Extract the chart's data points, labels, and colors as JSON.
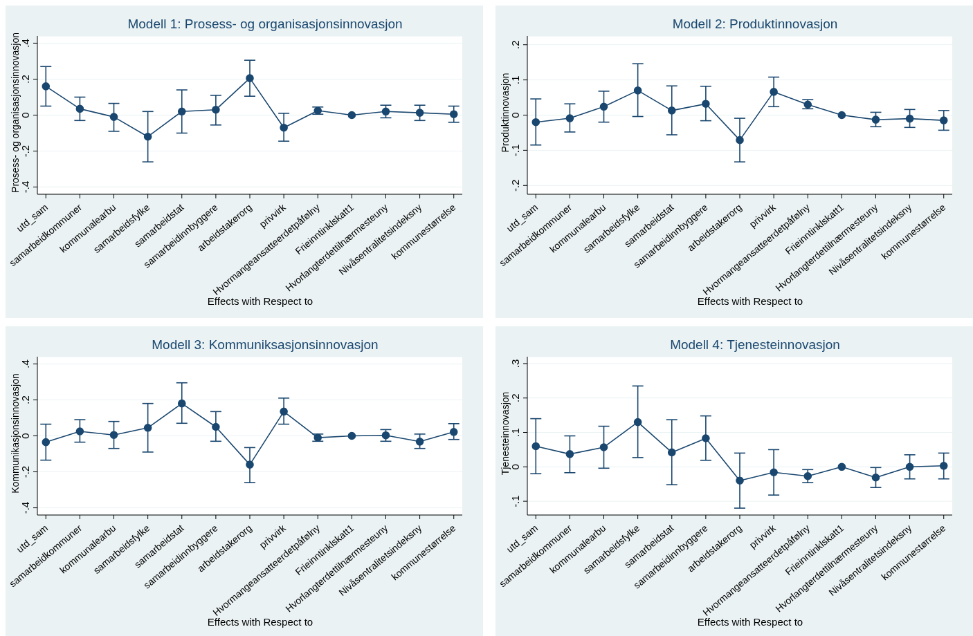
{
  "chart_data": [
    {
      "type": "line",
      "title": "Modell 1: Prosess- og organisasjonsinnovasjon",
      "xlabel": "Effects with Respect to",
      "ylabel": "Prosess- og organisasjonsinnovasjon",
      "categories": [
        "utd_sam",
        "samarbeidkommuner",
        "kommunalearbu",
        "samarbeidsfylke",
        "samarbeidstat",
        "samarbeidinnbyggere",
        "arbeidstakerorg",
        "privvirk",
        "Hvormangeansatteerdetpåfølny",
        "Frieinntinklskatt1",
        "Hvorlangterdettilnærmesteuny",
        "Nivåsentralitetsindeksny",
        "kommunestørrelse"
      ],
      "color": "#1a476f",
      "marker": "circle",
      "grid": "y",
      "values": [
        0.16,
        0.035,
        -0.01,
        -0.12,
        0.02,
        0.03,
        0.205,
        -0.07,
        0.025,
        0,
        0.02,
        0.013,
        0.005
      ],
      "errors": [
        [
          0.05,
          0.27
        ],
        [
          -0.03,
          0.1
        ],
        [
          -0.09,
          0.065
        ],
        [
          -0.26,
          0.02
        ],
        [
          -0.1,
          0.14
        ],
        [
          -0.055,
          0.11
        ],
        [
          0.105,
          0.305
        ],
        [
          -0.145,
          0.01
        ],
        [
          0.005,
          0.045
        ],
        null,
        [
          -0.015,
          0.055
        ],
        [
          -0.03,
          0.055
        ],
        [
          -0.04,
          0.05
        ]
      ],
      "ylim": [
        -0.44,
        0.44
      ],
      "yticks": [
        {
          "value": -0.4,
          "label": "-.4"
        },
        {
          "value": -0.2,
          "label": "-.2"
        },
        {
          "value": 0,
          "label": "0"
        },
        {
          "value": 0.2,
          "label": ".2"
        },
        {
          "value": 0.4,
          "label": ".4"
        }
      ]
    },
    {
      "type": "line",
      "title": "Modell 2: Produktinnovasjon",
      "xlabel": "Effects with Respect to",
      "ylabel": "Produktinnovasjon",
      "categories": [
        "utd_sam",
        "samarbeidkommuner",
        "kommunalearbu",
        "samarbeidsfylke",
        "samarbeidstat",
        "samarbeidinnbyggere",
        "arbeidstakerorg",
        "privvirk",
        "Hvormangeansatteerdetpåfølny",
        "Frieinntinklskatt1",
        "Hvorlangterdettilnærmesteuny",
        "Nivåsentralitetsindeksny",
        "kommunestørrelse"
      ],
      "color": "#1a476f",
      "marker": "circle",
      "grid": "y",
      "values": [
        -0.02,
        -0.009,
        0.024,
        0.07,
        0.013,
        0.032,
        -0.071,
        0.066,
        0.03,
        0,
        -0.013,
        -0.01,
        -0.015
      ],
      "errors": [
        [
          -0.085,
          0.046
        ],
        [
          -0.048,
          0.032
        ],
        [
          -0.02,
          0.068
        ],
        [
          -0.004,
          0.146
        ],
        [
          -0.056,
          0.083
        ],
        [
          -0.016,
          0.082
        ],
        [
          -0.133,
          -0.009
        ],
        [
          0.024,
          0.108
        ],
        [
          0.018,
          0.044
        ],
        null,
        [
          -0.033,
          0.008
        ],
        [
          -0.035,
          0.016
        ],
        [
          -0.043,
          0.013
        ]
      ],
      "ylim": [
        -0.225,
        0.225
      ],
      "yticks": [
        {
          "value": -0.2,
          "label": "-.2"
        },
        {
          "value": -0.1,
          "label": "-.1"
        },
        {
          "value": 0,
          "label": "0"
        },
        {
          "value": 0.1,
          "label": ".1"
        },
        {
          "value": 0.2,
          "label": ".2"
        }
      ]
    },
    {
      "type": "line",
      "title": "Modell 3: Kommuniksasjonsinnovasjon",
      "xlabel": "Effects with Respect to",
      "ylabel": "Kommunikasjonsinnovasjon",
      "categories": [
        "utd_sam",
        "samarbeidkommuner",
        "kommunalearbu",
        "samarbeidsfylke",
        "samarbeidstat",
        "samarbeidinnbyggere",
        "arbeidstakerorg",
        "privvirk",
        "Hvormangeansatteerdetpåfølny",
        "Frieinntinklskatt1",
        "Hvorlangterdettilnærmesteuny",
        "Nivåsentralitetsindeksny",
        "kommunestørrelse"
      ],
      "color": "#1a476f",
      "marker": "circle",
      "grid": "y",
      "values": [
        -0.035,
        0.025,
        0.005,
        0.045,
        0.18,
        0.05,
        -0.16,
        0.135,
        -0.01,
        0,
        0.003,
        -0.032,
        0.022
      ],
      "errors": [
        [
          -0.135,
          0.065
        ],
        [
          -0.035,
          0.09
        ],
        [
          -0.07,
          0.08
        ],
        [
          -0.09,
          0.18
        ],
        [
          0.07,
          0.295
        ],
        [
          -0.03,
          0.135
        ],
        [
          -0.26,
          -0.065
        ],
        [
          0.065,
          0.21
        ],
        [
          -0.03,
          0.01
        ],
        null,
        [
          -0.03,
          0.035
        ],
        [
          -0.07,
          0.01
        ],
        [
          -0.02,
          0.068
        ]
      ],
      "ylim": [
        -0.44,
        0.44
      ],
      "yticks": [
        {
          "value": -0.4,
          "label": "-.4"
        },
        {
          "value": -0.2,
          "label": "-.2"
        },
        {
          "value": 0,
          "label": "0"
        },
        {
          "value": 0.2,
          "label": ".2"
        },
        {
          "value": 0.4,
          "label": ".4"
        }
      ]
    },
    {
      "type": "line",
      "title": "Modell 4: Tjenesteinnovasjon",
      "xlabel": "Effects with Respect to",
      "ylabel": "Tjenesteinnovasjon",
      "categories": [
        "utd_sam",
        "samarbeidkommuner",
        "kommunalearbu",
        "samarbeidsfylke",
        "samarbeidstat",
        "samarbeidinnbyggere",
        "arbeidstakerorg",
        "privvirk",
        "Hvormangeansatteerdetpåfølny",
        "Frieinntinklskatt1",
        "Hvorlangterdettilnærmesteuny",
        "Nivåsentralitetsindeksny",
        "kommunestørrelse"
      ],
      "color": "#1a476f",
      "marker": "circle",
      "grid": "y",
      "values": [
        0.06,
        0.037,
        0.057,
        0.13,
        0.042,
        0.083,
        -0.04,
        -0.016,
        -0.027,
        0,
        -0.031,
        0,
        0.003
      ],
      "errors": [
        [
          -0.02,
          0.14
        ],
        [
          -0.017,
          0.09
        ],
        [
          -0.004,
          0.118
        ],
        [
          0.027,
          0.235
        ],
        [
          -0.052,
          0.137
        ],
        [
          0.019,
          0.148
        ],
        [
          -0.12,
          0.04
        ],
        [
          -0.082,
          0.05
        ],
        [
          -0.046,
          -0.008
        ],
        null,
        [
          -0.06,
          -0.002
        ],
        [
          -0.035,
          0.035
        ],
        [
          -0.035,
          0.04
        ]
      ],
      "ylim": [
        -0.14,
        0.32
      ],
      "yticks": [
        {
          "value": -0.1,
          "label": "-.1"
        },
        {
          "value": 0,
          "label": "0"
        },
        {
          "value": 0.1,
          "label": ".1"
        },
        {
          "value": 0.2,
          "label": ".2"
        },
        {
          "value": 0.3,
          "label": ".3"
        }
      ]
    }
  ]
}
